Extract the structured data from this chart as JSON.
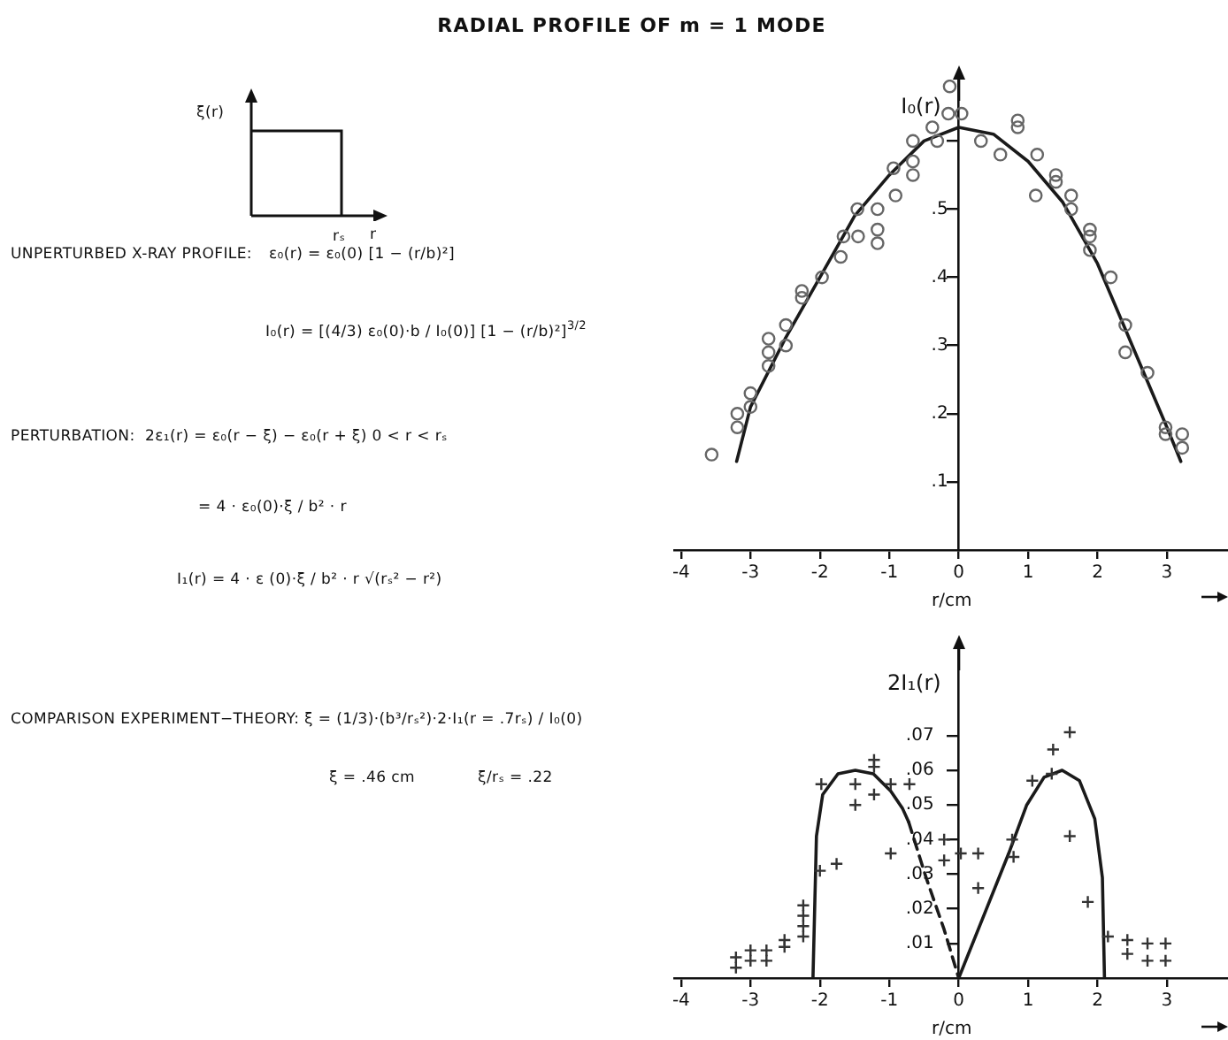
{
  "chart_data": [
    {
      "type": "other",
      "title": "RADIAL PROFILE OF m = 1 MODE",
      "annotations": [
        "ξ(r)",
        "rₛ",
        "r",
        "UNPERTURBED X-RAY PROFILE:",
        "ε₀(r) = ε₀(0) [1 − (r/b)²]",
        "I₀(r) = [(4/3) ε₀(0)·b / I₀(0)] [1 − (r/b)²]$^{3/2}$",
        "PERTURBATION:",
        "2ε₁(r) = ε₀(r − ξ) − ε₀(r + ξ)  0 < r < rₛ",
        "= 4 · ε₀(0)·ξ / b² · r",
        "I₁(r) = 4 · ε (0)·ξ / b² · r √(rₛ² − r²)",
        "COMPARISON EXPERIMENT−THEORY:",
        "ξ = (1/3)·(b³/rₛ²)·2·I₁(r = .7rₛ) / I₀(0)",
        "ξ = .46 cm",
        "ξ/rₛ = .22"
      ]
    },
    {
      "type": "scatter",
      "xlabel": "r/cm",
      "ylabel": "I₀(r)",
      "xlim": [
        -4.1,
        3.9
      ],
      "ylim": [
        0,
        0.69
      ],
      "xticks": [
        -4,
        -3,
        -2,
        -1,
        0,
        1,
        2,
        3
      ],
      "yticks": [
        {
          "value": 0.1,
          "label": ".1"
        },
        {
          "value": 0.2,
          "label": ".2"
        },
        {
          "value": 0.3,
          "label": ".3"
        },
        {
          "value": 0.4,
          "label": ".4"
        },
        {
          "value": 0.5,
          "label": ".5"
        },
        {
          "value": 0.6,
          "label": null
        }
      ],
      "series": [
        {
          "type": "scatter",
          "marker": "circle",
          "color": "#666666",
          "x": [
            -3.56,
            -3.19,
            -3.19,
            -3.0,
            -3.0,
            -2.74,
            -2.74,
            -2.74,
            -2.49,
            -2.49,
            -2.26,
            -2.26,
            -1.97,
            -1.7,
            -1.66,
            -1.45,
            -1.46,
            -1.17,
            -1.17,
            -1.17,
            -0.94,
            -0.91,
            -0.66,
            -0.66,
            -0.66,
            -0.38,
            -0.31,
            -0.15,
            -0.13,
            0.04,
            0.32,
            0.6,
            0.85,
            0.85,
            1.13,
            1.11,
            1.4,
            1.4,
            1.62,
            1.62,
            1.89,
            1.89,
            1.89,
            2.19,
            2.4,
            2.4,
            2.72,
            2.98,
            2.98,
            3.22,
            3.22
          ],
          "values": [
            0.14,
            0.2,
            0.18,
            0.23,
            0.21,
            0.31,
            0.29,
            0.27,
            0.33,
            0.3,
            0.38,
            0.37,
            0.4,
            0.43,
            0.46,
            0.46,
            0.5,
            0.5,
            0.47,
            0.45,
            0.56,
            0.52,
            0.6,
            0.57,
            0.55,
            0.62,
            0.6,
            0.64,
            0.68,
            0.64,
            0.6,
            0.58,
            0.63,
            0.62,
            0.58,
            0.52,
            0.55,
            0.54,
            0.52,
            0.5,
            0.47,
            0.46,
            0.44,
            0.4,
            0.33,
            0.29,
            0.26,
            0.18,
            0.17,
            0.17,
            0.15
          ]
        },
        {
          "type": "line",
          "marker": "none",
          "color": "#1a1a1a",
          "x": [
            -3.2,
            -3,
            -2.5,
            -2,
            -1.5,
            -1,
            -0.5,
            0,
            0.5,
            1,
            1.5,
            2,
            2.5,
            3,
            3.2
          ],
          "values": [
            0.13,
            0.21,
            0.31,
            0.4,
            0.49,
            0.55,
            0.6,
            0.62,
            0.61,
            0.57,
            0.51,
            0.42,
            0.3,
            0.18,
            0.13
          ]
        }
      ]
    },
    {
      "type": "scatter",
      "xlabel": "r/cm",
      "ylabel": "2I₁(r)",
      "xlim": [
        -4.1,
        3.9
      ],
      "ylim": [
        0,
        0.095
      ],
      "xticks": [
        -4,
        -3,
        -2,
        -1,
        0,
        1,
        2,
        3
      ],
      "yticks": [
        {
          "value": 0.01,
          "label": ".01"
        },
        {
          "value": 0.02,
          "label": ".02"
        },
        {
          "value": 0.03,
          "label": ".03"
        },
        {
          "value": 0.04,
          "label": ".04"
        },
        {
          "value": 0.05,
          "label": ".05"
        },
        {
          "value": 0.06,
          "label": ".06"
        },
        {
          "value": 0.07,
          "label": ".07"
        }
      ],
      "series": [
        {
          "type": "scatter",
          "marker": "cross",
          "color": "#333333",
          "x": [
            -3.21,
            -3.21,
            -3.0,
            -3.0,
            -2.77,
            -2.77,
            -2.51,
            -2.51,
            -2.24,
            -2.24,
            -2.24,
            -2.24,
            -2.0,
            -1.98,
            -1.76,
            -1.49,
            -1.49,
            -1.22,
            -1.22,
            -1.22,
            -0.98,
            -0.98,
            -0.71,
            -0.21,
            -0.21,
            0.03,
            0.28,
            0.28,
            0.77,
            0.79,
            1.06,
            1.34,
            1.36,
            1.6,
            1.6,
            1.86,
            2.15,
            2.43,
            2.43,
            2.72,
            2.72,
            2.98,
            2.98
          ],
          "values": [
            0.006,
            0.003,
            0.008,
            0.005,
            0.008,
            0.005,
            0.011,
            0.009,
            0.021,
            0.018,
            0.015,
            0.012,
            0.031,
            0.056,
            0.033,
            0.056,
            0.05,
            0.063,
            0.061,
            0.053,
            0.056,
            0.036,
            0.056,
            0.04,
            0.034,
            0.036,
            0.036,
            0.026,
            0.04,
            0.035,
            0.057,
            0.059,
            0.066,
            0.071,
            0.041,
            0.022,
            0.012,
            0.011,
            0.007,
            0.01,
            0.005,
            0.01,
            0.005
          ]
        },
        {
          "type": "line",
          "marker": "none",
          "color": "#1a1a1a",
          "x": [
            -2.1,
            -2.05,
            -1.96,
            -1.74,
            -1.49,
            -1.23,
            -0.98,
            -0.81,
            -0.72
          ],
          "values": [
            0,
            0.041,
            0.053,
            0.059,
            0.06,
            0.059,
            0.054,
            0.049,
            0.045
          ]
        },
        {
          "type": "line",
          "marker": "none",
          "line_style": "dashed",
          "color": "#1a1a1a",
          "x": [
            -0.72,
            -0.47,
            -0.21,
            0
          ],
          "values": [
            0.045,
            0.029,
            0.014,
            0
          ]
        },
        {
          "type": "line",
          "marker": "none",
          "color": "#1a1a1a",
          "x": [
            0,
            0.38,
            0.72,
            0.98,
            1.23,
            1.49,
            1.74,
            1.96,
            2.07,
            2.1
          ],
          "values": [
            0,
            0.019,
            0.036,
            0.05,
            0.058,
            0.06,
            0.057,
            0.046,
            0.029,
            0
          ]
        }
      ]
    }
  ]
}
